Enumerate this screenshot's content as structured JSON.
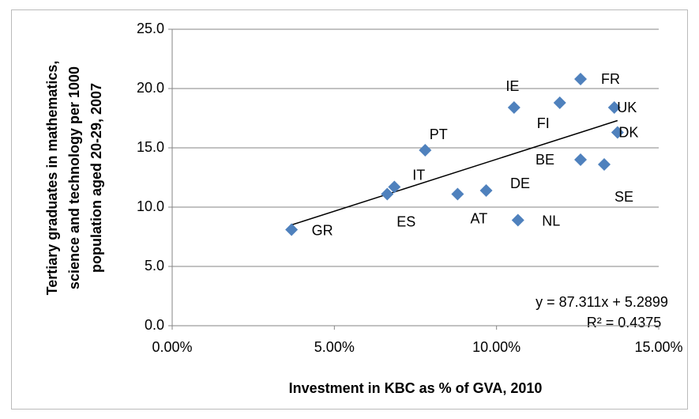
{
  "chart_data": {
    "type": "scatter",
    "xlabel": "Investment in KBC as % of GVA, 2010",
    "ylabel": [
      "Tertiary graduates in mathematics,",
      "science and technology per 1000",
      "population aged 20-29, 2007"
    ],
    "xlim": [
      0,
      15
    ],
    "xticks": [
      {
        "value": 0,
        "label": "0.00%"
      },
      {
        "value": 5,
        "label": "5.00%"
      },
      {
        "value": 10,
        "label": "10.00%"
      },
      {
        "value": 15,
        "label": "15.00%"
      }
    ],
    "ylim": [
      0,
      25
    ],
    "yticks": [
      {
        "value": 0,
        "label": "0.0"
      },
      {
        "value": 5,
        "label": "5.0"
      },
      {
        "value": 10,
        "label": "10.0"
      },
      {
        "value": 15,
        "label": "15.0"
      },
      {
        "value": 20,
        "label": "20.0"
      },
      {
        "value": 25,
        "label": "25.0"
      }
    ],
    "grid": true,
    "color": "#4f81bd",
    "labels": [
      "GR",
      "ES",
      "IT",
      "PT",
      "AT",
      "DE",
      "NL",
      "IE",
      "FI",
      "FR",
      "UK",
      "DK",
      "BE",
      "SE"
    ],
    "x": [
      3.68,
      6.63,
      6.85,
      7.8,
      8.8,
      9.68,
      10.66,
      10.54,
      11.95,
      12.59,
      13.63,
      13.73,
      12.59,
      13.32
    ],
    "y": [
      8.1,
      11.1,
      11.7,
      14.8,
      11.1,
      11.4,
      8.9,
      18.4,
      18.8,
      20.8,
      18.4,
      16.3,
      14.0,
      13.6
    ],
    "trendline": {
      "x": [
        3.68,
        13.73
      ],
      "y": [
        8.5,
        17.3
      ]
    },
    "annotations": [
      "y = 87.311x + 5.2899",
      "R² = 0.4375"
    ]
  }
}
